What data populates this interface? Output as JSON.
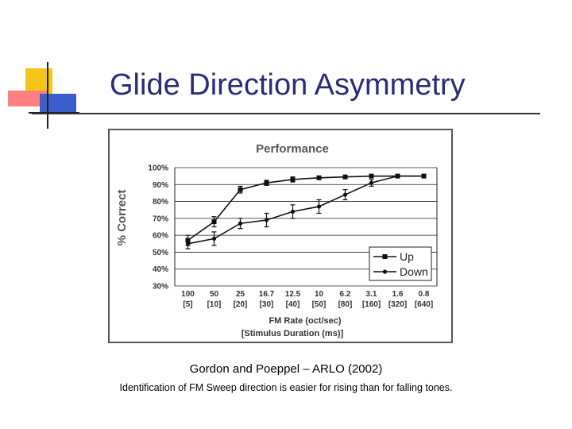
{
  "slide": {
    "title": "Glide Direction Asymmetry",
    "citation": "Gordon and Poeppel – ARLO (2002)",
    "description": "Identification of FM Sweep direction is easier for rising than for falling tones."
  },
  "logo": {
    "icon": "slide-corner-decoration-icon",
    "colors": [
      "#f5c518",
      "#ff7f7f",
      "#3a5fcd"
    ]
  },
  "chart_data": {
    "type": "line",
    "title": "Performance",
    "ylabel": "% Correct",
    "xlabel": "FM Rate (oct/sec)",
    "xlabel2": "[Stimulus Duration (ms)]",
    "ylim": [
      0.3,
      1.0
    ],
    "yticks": [
      "100%",
      "90%",
      "80%",
      "70%",
      "60%",
      "50%",
      "40%",
      "30%"
    ],
    "ytick_values": [
      1.0,
      0.9,
      0.8,
      0.7,
      0.6,
      0.5,
      0.4,
      0.3
    ],
    "categories": [
      "100",
      "50",
      "25",
      "16.7",
      "12.5",
      "10",
      "6.2",
      "3.1",
      "1.6",
      "0.8"
    ],
    "categories_sub": [
      "[5]",
      "[10]",
      "[20]",
      "[30]",
      "[40]",
      "[50]",
      "[80]",
      "[160]",
      "[320]",
      "[640]"
    ],
    "grid": true,
    "legend_position": "bottom-right",
    "series": [
      {
        "name": "Up",
        "values": [
          0.57,
          0.68,
          0.87,
          0.91,
          0.93,
          0.94,
          0.945,
          0.95,
          0.95,
          0.95
        ],
        "errors": [
          0.03,
          0.03,
          0.02,
          0.015,
          0.015,
          0.01,
          0.01,
          0.01,
          0.01,
          0.01
        ]
      },
      {
        "name": "Down",
        "values": [
          0.55,
          0.58,
          0.67,
          0.69,
          0.74,
          0.77,
          0.84,
          0.91,
          0.95,
          0.95
        ],
        "errors": [
          0.03,
          0.04,
          0.03,
          0.04,
          0.04,
          0.04,
          0.03,
          0.02,
          0.01,
          0.01
        ]
      }
    ]
  }
}
